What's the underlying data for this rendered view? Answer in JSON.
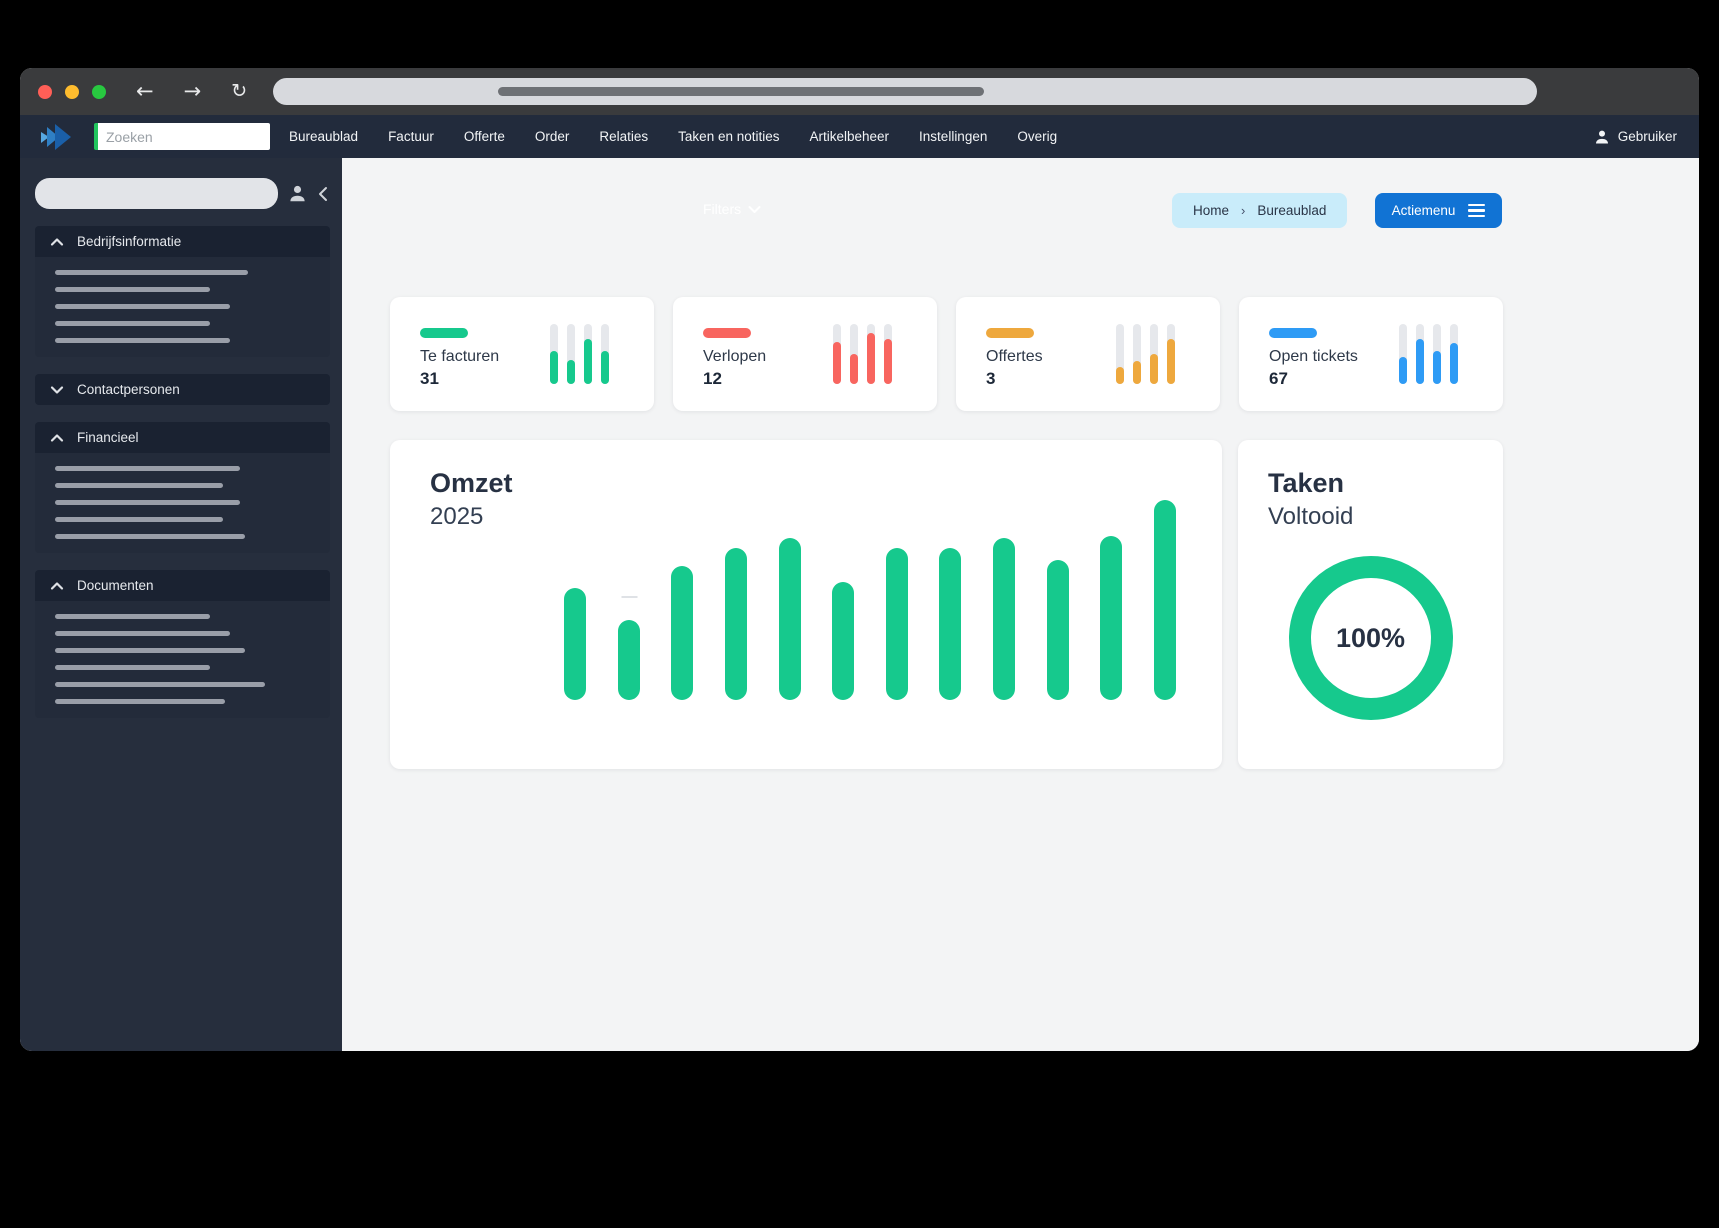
{
  "colors": {
    "green": "#16c98d",
    "red": "#f8655f",
    "orange": "#eea83d",
    "blue": "#2e9bf5",
    "action_blue": "#1173d4",
    "breadcrumb_bg": "#c9ecfa",
    "navbar_bg": "#222b3c",
    "sidebar_bg": "#262e3d"
  },
  "navbar": {
    "search": {
      "placeholder": "Zoeken"
    },
    "items": [
      "Bureaublad",
      "Factuur",
      "Offerte",
      "Order",
      "Relaties",
      "Taken en notities",
      "Artikelbeheer",
      "Instellingen",
      "Overig"
    ],
    "user": {
      "label": "Gebruiker"
    }
  },
  "sidebar": {
    "sections": [
      {
        "label": "Bedrijfsinformatie",
        "state": "expanded",
        "skeleton_line_widths": [
          193,
          155,
          175,
          155,
          175
        ]
      },
      {
        "label": "Contactpersonen",
        "state": "collapsed",
        "skeleton_line_widths": []
      },
      {
        "label": "Financieel",
        "state": "expanded",
        "skeleton_line_widths": [
          185,
          168,
          185,
          168,
          190
        ]
      },
      {
        "label": "Documenten",
        "state": "expanded",
        "skeleton_line_widths": [
          155,
          175,
          190,
          155,
          210,
          170
        ]
      }
    ]
  },
  "main": {
    "filters_label": "Filters",
    "breadcrumb": {
      "home": "Home",
      "separator": "›",
      "current": "Bureaublad"
    },
    "action_button_label": "Actiemenu",
    "stat_cards": [
      {
        "label": "Te facturen",
        "value": "31",
        "color": "#16c98d",
        "spark": [
          55,
          40,
          75,
          55
        ]
      },
      {
        "label": "Verlopen",
        "value": "12",
        "color": "#f8655f",
        "spark": [
          70,
          50,
          85,
          75
        ]
      },
      {
        "label": "Offertes",
        "value": "3",
        "color": "#eea83d",
        "spark": [
          28,
          38,
          50,
          75
        ]
      },
      {
        "label": "Open tickets",
        "value": "67",
        "color": "#2e9bf5",
        "spark": [
          45,
          75,
          55,
          68
        ]
      }
    ],
    "revenue_card": {
      "title": "Omzet",
      "subtitle": "2025"
    },
    "tasks_card": {
      "title": "Taken",
      "subtitle": "Voltooid",
      "value": "100%"
    }
  },
  "chart_data": [
    {
      "type": "bar",
      "title": "Omzet 2025",
      "x": [
        "1",
        "2",
        "3",
        "4",
        "5",
        "6",
        "7",
        "8",
        "9",
        "10",
        "11",
        "12"
      ],
      "values": [
        56,
        40,
        67,
        76,
        81,
        59,
        76,
        76,
        81,
        70,
        82,
        100
      ],
      "unit": "relative bar height, % of tallest bar (no numeric axis shown)",
      "xlabel": "",
      "ylabel": "",
      "legend": "none",
      "grid": "single dashed horizontal midline at ~51% of max bar",
      "bar_color": "#16c98d"
    },
    {
      "type": "pie",
      "variant": "donut",
      "title": "Taken Voltooid",
      "values": [
        100
      ],
      "labels": [
        "Voltooid"
      ],
      "center_label": "100%",
      "color": "#16c98d"
    },
    {
      "type": "bar",
      "title": "Te facturen sparkline",
      "values": [
        55,
        40,
        75,
        55
      ],
      "unit": "% of track height"
    },
    {
      "type": "bar",
      "title": "Verlopen sparkline",
      "values": [
        70,
        50,
        85,
        75
      ],
      "unit": "% of track height"
    },
    {
      "type": "bar",
      "title": "Offertes sparkline",
      "values": [
        28,
        38,
        50,
        75
      ],
      "unit": "% of track height"
    },
    {
      "type": "bar",
      "title": "Open tickets sparkline",
      "values": [
        45,
        75,
        55,
        68
      ],
      "unit": "% of track height"
    }
  ]
}
